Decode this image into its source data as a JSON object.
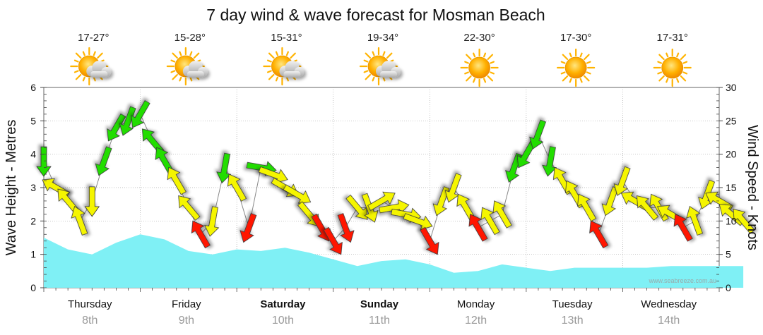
{
  "chart_data": {
    "type": "line",
    "title": "7 day wind & wave forecast for Mosman Beach",
    "ylabel": "Wave Height - Metres",
    "y2label": "Wind Speed - Knots",
    "ylim": [
      0,
      6
    ],
    "y2lim": [
      0,
      30
    ],
    "yticks": [
      "0",
      "1",
      "2",
      "3",
      "4",
      "5",
      "6"
    ],
    "y2ticks": [
      "0",
      "5",
      "10",
      "15",
      "20",
      "25",
      "30"
    ],
    "grid": true,
    "watermark": "www.seabreeze.com.au",
    "days": [
      {
        "name": "Thursday",
        "date": "8th",
        "bold": false,
        "temp": "17-27°",
        "weather": "partly-cloudy-icon"
      },
      {
        "name": "Friday",
        "date": "9th",
        "bold": false,
        "temp": "15-28°",
        "weather": "partly-cloudy-icon"
      },
      {
        "name": "Saturday",
        "date": "10th",
        "bold": true,
        "temp": "15-31°",
        "weather": "partly-cloudy-icon"
      },
      {
        "name": "Sunday",
        "date": "11th",
        "bold": true,
        "temp": "19-34°",
        "weather": "partly-cloudy-icon"
      },
      {
        "name": "Monday",
        "date": "12th",
        "bold": false,
        "temp": "22-30°",
        "weather": "sunny-icon"
      },
      {
        "name": "Tuesday",
        "date": "13th",
        "bold": false,
        "temp": "17-30°",
        "weather": "sunny-icon"
      },
      {
        "name": "Wednesday",
        "date": "14th",
        "bold": false,
        "temp": "17-31°",
        "weather": "sunny-icon"
      }
    ],
    "wave_series": {
      "name": "Wave Height",
      "color": "#7ff0f5",
      "x_hours": [
        0,
        6,
        12,
        18,
        24,
        30,
        36,
        42,
        48,
        54,
        60,
        66,
        72,
        78,
        84,
        90,
        96,
        102,
        108,
        114,
        120,
        126,
        132,
        138,
        144,
        150,
        156,
        162,
        168
      ],
      "values": [
        1.5,
        1.15,
        1.0,
        1.35,
        1.6,
        1.45,
        1.1,
        1.0,
        1.15,
        1.1,
        1.2,
        1.05,
        0.85,
        0.65,
        0.8,
        0.85,
        0.7,
        0.45,
        0.5,
        0.7,
        0.6,
        0.5,
        0.6,
        0.6,
        0.6,
        0.6,
        0.65,
        0.65,
        0.65
      ],
      "end_hour": 174
    },
    "wind_series": {
      "name": "Wind Speed",
      "x_hours": [
        0,
        3,
        6,
        9,
        12,
        15,
        18,
        21,
        24,
        27,
        30,
        33,
        36,
        39,
        42,
        45,
        48,
        51,
        54,
        57,
        60,
        63,
        66,
        69,
        72,
        75,
        78,
        81,
        84,
        87,
        90,
        93,
        96,
        99,
        102,
        105,
        108,
        111,
        114,
        117,
        120,
        123,
        126,
        129,
        132,
        135,
        138,
        141,
        144,
        147,
        150,
        153,
        156,
        159,
        162,
        165,
        168,
        171,
        174
      ],
      "values": [
        19,
        15,
        13,
        10,
        13,
        19,
        24,
        25,
        26,
        22,
        19,
        16,
        12,
        8,
        10,
        18,
        15,
        9,
        18,
        17,
        15,
        14,
        11,
        9,
        7,
        9,
        12,
        12,
        13,
        12,
        11,
        10,
        7,
        13,
        15,
        12,
        9,
        10,
        11,
        18,
        20,
        23,
        19,
        16,
        14,
        12,
        8,
        13,
        16,
        13,
        12,
        12,
        11,
        9,
        10,
        14,
        13,
        11,
        10
      ],
      "directions_deg": [
        180,
        300,
        320,
        340,
        180,
        200,
        210,
        200,
        210,
        320,
        330,
        330,
        320,
        330,
        190,
        190,
        330,
        200,
        100,
        110,
        120,
        120,
        140,
        150,
        150,
        160,
        140,
        160,
        60,
        80,
        100,
        110,
        150,
        200,
        200,
        330,
        330,
        330,
        330,
        200,
        210,
        200,
        190,
        330,
        330,
        330,
        330,
        200,
        200,
        300,
        320,
        330,
        300,
        330,
        340,
        200,
        300,
        310,
        320
      ]
    }
  }
}
